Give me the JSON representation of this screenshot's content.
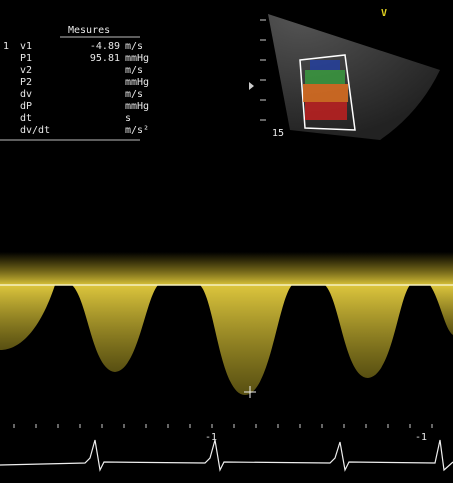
{
  "panel": {
    "title": "Mesures",
    "rows": [
      {
        "index": "1",
        "label": "v1",
        "value": -4.89,
        "unit": "m/s"
      },
      {
        "label": "P1",
        "value": 95.81,
        "unit": "mmHg"
      },
      {
        "label": "v2",
        "unit": "m/s"
      },
      {
        "label": "P2",
        "unit": "mmHg"
      },
      {
        "label": "dv",
        "unit": "m/s"
      },
      {
        "label": "dP",
        "unit": "mmHg"
      },
      {
        "label": "dt",
        "unit": "s"
      },
      {
        "label": "dv/dt",
        "unit": "m/s²"
      }
    ]
  },
  "sector": {
    "marker": "V",
    "depth": "15"
  },
  "timeline": {
    "labels": [
      "-1",
      "-1"
    ]
  }
}
